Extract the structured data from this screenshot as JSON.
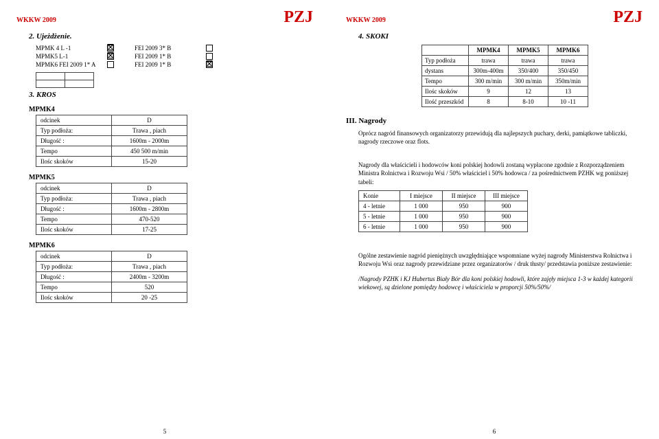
{
  "hdr": {
    "left": "WKKW 2009",
    "right": "PZJ"
  },
  "left": {
    "s2": "2.   Ujeżdżenie.",
    "checks1": [
      {
        "t": "MPMK 4 L -1",
        "on": true
      },
      {
        "t": "MPMK5 L-1",
        "on": true
      },
      {
        "t": "MPMK6 FEI 2009 1* A",
        "on": false
      }
    ],
    "checks2": [
      {
        "t": "FEI 2009 3* B",
        "on": false
      },
      {
        "t": "FEI 2009 1* B",
        "on": false
      },
      {
        "t": "FEI 2009 1* B",
        "on": true
      }
    ],
    "s3": "3.   KROS",
    "g4": "MPMK4",
    "g5": "MPMK5",
    "g6": "MPMK6",
    "rows4": [
      [
        "odcinek",
        "D"
      ],
      [
        "Typ podłoża:",
        "Trawa , piach"
      ],
      [
        "Długość :",
        "1600m - 2000m"
      ],
      [
        "Tempo",
        "450 500 m/min"
      ],
      [
        "Ilośc skoków",
        "15-20"
      ]
    ],
    "rows5": [
      [
        "odcinek",
        "D"
      ],
      [
        "Typ podłoża:",
        "Trawa , piach"
      ],
      [
        "Długość :",
        "1600m - 2800m"
      ],
      [
        "Tempo",
        "470-520"
      ],
      [
        "Ilośc skoków",
        "17-25"
      ]
    ],
    "rows6": [
      [
        "odcinek",
        "D"
      ],
      [
        "Typ podłoża:",
        "Trawa , piach"
      ],
      [
        "Długość :",
        "2400m - 3200m"
      ],
      [
        "Tempo",
        "520"
      ],
      [
        "Ilośc skoków",
        "20 -25"
      ]
    ],
    "foot": "5"
  },
  "right": {
    "s4": "4.   SKOKI",
    "topHead": [
      "",
      "MPMK4",
      "MPMK5",
      "MPMK6"
    ],
    "topRows": [
      [
        "Typ podłoża",
        "trawa",
        "trawa",
        "trawa"
      ],
      [
        "dystans",
        "300m-400m",
        "350/400",
        "350/450"
      ],
      [
        "Tempo",
        "300 m/min",
        "300 m/min",
        "350m/min"
      ],
      [
        "Ilośc skoków",
        "9",
        "12",
        "13"
      ],
      [
        "Ilość przeszkód",
        "8",
        "8-10",
        "10 -11"
      ]
    ],
    "s3h": "III.   Nagrody",
    "p1": "Oprócz nagród finansowych organizatorzy przewidują dla najlepszych puchary, derki, pamiątkowe tabliczki, nagrody rzeczowe oraz flots.",
    "p2": "Nagrody dla właścicieli i hodowców koni polskiej hodowli zostaną wypłacone zgodnie z Rozporządzeniem Ministra Rolnictwa i Rozwoju Wsi /  50% właściciel i 50% hodowca / za pośrednictwem PZHK wg poniższej tabeli:",
    "prizeHead": [
      "Konie",
      "I miejsce",
      "II miejsce",
      "III miejsce"
    ],
    "prizeRows": [
      [
        "4 - letnie",
        "1 000",
        "950",
        "900"
      ],
      [
        "5 - letnie",
        "1 000",
        "950",
        "900"
      ],
      [
        "6 - letnie",
        "1 000",
        "950",
        "900"
      ]
    ],
    "p3": "Ogólne zestawienie nagród pieniężnych uwzględniające wspomniane wyżej  nagrody Ministerstwa Rolnictwa i Rozwoju Wsi oraz nagrody przewidziane przez organizatorów / druk tłusty/ przedstawia  poniższe zestawienie:",
    "p4": "/Nagrody PZHK i KJ Hubertus Biały Bór dla koni polskiej hodowli, które zajęły miejsca 1-3 w każdej kategorii wiekowej, są dzielone pomiędzy hodowcę i właściciela w proporcji 50%/50%/",
    "foot": "6"
  }
}
